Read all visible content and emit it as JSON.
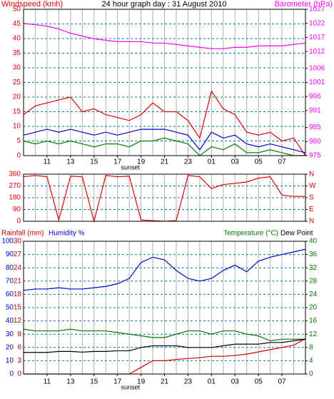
{
  "chart_data": [
    {
      "type": "line",
      "title": "24 hour graph day : 31 August 2010",
      "ylabel": "Windspeed (kmh)",
      "y2label": "Barometer (hPa)",
      "ycolor": "#e00000",
      "y2color": "#ff00ff",
      "x": [
        9,
        10,
        11,
        12,
        13,
        14,
        15,
        16,
        17,
        18,
        19,
        20,
        21,
        22,
        23,
        24,
        25,
        26,
        27,
        28,
        29,
        30,
        31,
        32,
        33
      ],
      "xlim": [
        9,
        33
      ],
      "xticks": [
        11,
        13,
        15,
        17,
        19,
        21,
        23,
        {
          "value": 25,
          "label": "01"
        },
        {
          "value": 27,
          "label": "03"
        },
        {
          "value": 29,
          "label": "05"
        },
        {
          "value": 31,
          "label": "07"
        }
      ],
      "xgrid": [
        10,
        11,
        12,
        13,
        14,
        15,
        16,
        17,
        18,
        19,
        20,
        21,
        22,
        23,
        24,
        25,
        26,
        27,
        28,
        29,
        30,
        31,
        32
      ],
      "ylim": [
        0,
        50
      ],
      "yticks": [
        0,
        5,
        10,
        15,
        20,
        25,
        30,
        35,
        40,
        45,
        50
      ],
      "y2lim": [
        975,
        1027
      ],
      "y2ticks": [
        975,
        980,
        985,
        991,
        996,
        1001,
        1006,
        1012,
        1017,
        1022,
        1027
      ],
      "annotations": [
        {
          "text": "sunset",
          "x": 18.1
        }
      ],
      "series": [
        {
          "color": "#e00000",
          "values": [
            14,
            17,
            18,
            19,
            20,
            15,
            16,
            14,
            13,
            12,
            14,
            18,
            15,
            15,
            12,
            6,
            22,
            16,
            14,
            8,
            7,
            8,
            5,
            6,
            0
          ]
        },
        {
          "color": "#0000cc",
          "values": [
            7,
            8,
            9,
            8,
            9,
            8,
            7,
            8,
            7,
            8,
            9,
            9,
            9,
            8,
            7,
            2,
            8,
            6,
            7,
            4,
            3,
            4,
            3,
            2,
            1
          ]
        },
        {
          "color": "#008000",
          "values": [
            5,
            4,
            5,
            4,
            5,
            4,
            3,
            4,
            4,
            3,
            5,
            5,
            6,
            5,
            4,
            0,
            3,
            2,
            4,
            1,
            1,
            2,
            1,
            0,
            0
          ]
        },
        {
          "color": "#ff00ff",
          "axis": "y2",
          "values": [
            1022,
            1021.5,
            1021,
            1020,
            1018.5,
            1017.5,
            1016.5,
            1016,
            1015.5,
            1015.5,
            1015.5,
            1015,
            1015,
            1014.5,
            1014,
            1013.5,
            1013,
            1013,
            1013.5,
            1013.5,
            1014,
            1014,
            1014,
            1014.5,
            1015
          ]
        }
      ]
    },
    {
      "type": "line",
      "ycolor": "#e00000",
      "y2color": "#e00000",
      "x": [
        9,
        10,
        11,
        12,
        13,
        14,
        15,
        16,
        17,
        18,
        19,
        20,
        21,
        22,
        23,
        24,
        25,
        26,
        27,
        28,
        29,
        30,
        31,
        32,
        33
      ],
      "xlim": [
        9,
        33
      ],
      "xgrid": [
        10,
        11,
        12,
        13,
        14,
        15,
        16,
        17,
        18,
        19,
        20,
        21,
        22,
        23,
        24,
        25,
        26,
        27,
        28,
        29,
        30,
        31,
        32
      ],
      "ylim": [
        0,
        360
      ],
      "yticks": [
        0,
        90,
        180,
        270,
        360
      ],
      "y2lim": [
        0,
        360
      ],
      "y2ticks": [
        {
          "value": 360,
          "label": "N"
        },
        {
          "value": 270,
          "label": "W"
        },
        {
          "value": 180,
          "label": "S"
        },
        {
          "value": 90,
          "label": "E"
        },
        {
          "value": 0,
          "label": "N"
        }
      ],
      "series": [
        {
          "color": "#e00000",
          "values": [
            340,
            350,
            340,
            10,
            345,
            340,
            0,
            350,
            340,
            345,
            10,
            5,
            0,
            5,
            350,
            340,
            250,
            280,
            290,
            300,
            330,
            340,
            200,
            190,
            190
          ]
        }
      ]
    },
    {
      "type": "line",
      "ycolor": "#0000cc",
      "y2color": "#007700",
      "y3color": "#cc0000",
      "x": [
        9,
        10,
        11,
        12,
        13,
        14,
        15,
        16,
        17,
        18,
        19,
        20,
        21,
        22,
        23,
        24,
        25,
        26,
        27,
        28,
        29,
        30,
        31,
        32,
        33
      ],
      "xlim": [
        9,
        33
      ],
      "xticks": [
        11,
        13,
        15,
        17,
        19,
        21,
        23,
        {
          "value": 25,
          "label": "01"
        },
        {
          "value": 27,
          "label": "03"
        },
        {
          "value": 29,
          "label": "05"
        },
        {
          "value": 31,
          "label": "07"
        }
      ],
      "xgrid": [
        10,
        11,
        12,
        13,
        14,
        15,
        16,
        17,
        18,
        19,
        20,
        21,
        22,
        23,
        24,
        25,
        26,
        27,
        28,
        29,
        30,
        31,
        32
      ],
      "ylim": [
        0,
        100
      ],
      "yticks": [
        0,
        10,
        20,
        30,
        40,
        50,
        60,
        70,
        80,
        90,
        100
      ],
      "y3lim": [
        0,
        30
      ],
      "y3ticks": [
        0,
        3,
        6,
        9,
        12,
        15,
        18,
        21,
        24,
        27,
        30
      ],
      "y2lim": [
        0,
        40
      ],
      "y2ticks": [
        0,
        4,
        8,
        12,
        16,
        20,
        24,
        28,
        32,
        36,
        40
      ],
      "annotations": [
        {
          "text": "sunset",
          "x": 18.1
        }
      ],
      "series": [
        {
          "name": "Humidity %",
          "color": "#0000cc",
          "values": [
            63,
            64,
            64,
            65,
            64,
            64,
            65,
            66,
            68,
            72,
            84,
            88,
            86,
            78,
            72,
            70,
            72,
            78,
            82,
            77,
            85,
            88,
            90,
            92,
            94
          ]
        },
        {
          "name": "Rainfall (mm)",
          "color": "#cc0000",
          "axis": "y3",
          "values": [
            0,
            0,
            0,
            0,
            0,
            0,
            0,
            0,
            0,
            0,
            1.5,
            3,
            3,
            3.3,
            3.5,
            3.7,
            4,
            4,
            4.2,
            4.5,
            5,
            5.5,
            6,
            6.5,
            8
          ]
        },
        {
          "name": "Temperature (°C)",
          "color": "#007700",
          "axis": "y2",
          "values": [
            13.5,
            13,
            13,
            13,
            13.5,
            13,
            13,
            13,
            12.5,
            12,
            11.5,
            11,
            11,
            12,
            13,
            13,
            12,
            13,
            13,
            12,
            11.5,
            10,
            10.5,
            10.5,
            10.5
          ]
        },
        {
          "name": "Dew Point",
          "color": "#000000",
          "axis": "y2",
          "values": [
            6.5,
            6.5,
            6.5,
            6.8,
            6.8,
            6.6,
            6.8,
            6.8,
            7,
            7,
            8,
            8.5,
            8.5,
            8.5,
            8,
            8,
            8,
            8.5,
            9,
            9,
            9,
            9.5,
            9.5,
            10,
            10.5
          ]
        }
      ]
    }
  ]
}
